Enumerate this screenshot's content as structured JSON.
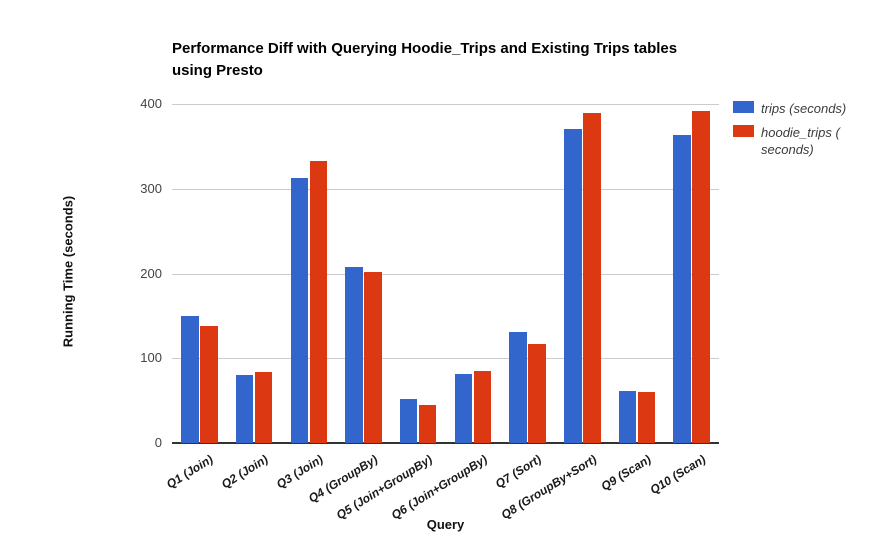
{
  "title": {
    "line1": "Performance Diff with Querying Hoodie_Trips and Existing Trips tables",
    "line2": "using Presto"
  },
  "chart_data": {
    "type": "bar",
    "title": "Performance Diff with Querying Hoodie_Trips and Existing Trips tables using Presto",
    "xlabel": "Query",
    "ylabel": "Running Time (seconds)",
    "ylim": [
      0,
      400
    ],
    "yticks": [
      0,
      100,
      200,
      300,
      400
    ],
    "grid": true,
    "legend_position": "right",
    "categories": [
      "Q1 (Join)",
      "Q2 (Join)",
      "Q3 (Join)",
      "Q4 (GroupBy)",
      "Q5 (Join+GroupBy)",
      "Q6 (Join+GroupBy)",
      "Q7 (Sort)",
      "Q8 (GroupBy+Sort)",
      "Q9 (Scan)",
      "Q10 (Scan)"
    ],
    "series": [
      {
        "name": "trips (seconds)",
        "color": "#3366cc",
        "legend_lines": [
          "trips (seconds)"
        ],
        "values": [
          150,
          80,
          313,
          208,
          52,
          81,
          131,
          371,
          62,
          363
        ]
      },
      {
        "name": "hoodie_trips (seconds)",
        "color": "#dc3912",
        "legend_lines": [
          "hoodie_trips (",
          "seconds)"
        ],
        "values": [
          138,
          84,
          333,
          202,
          45,
          85,
          117,
          390,
          60,
          392
        ]
      }
    ]
  }
}
